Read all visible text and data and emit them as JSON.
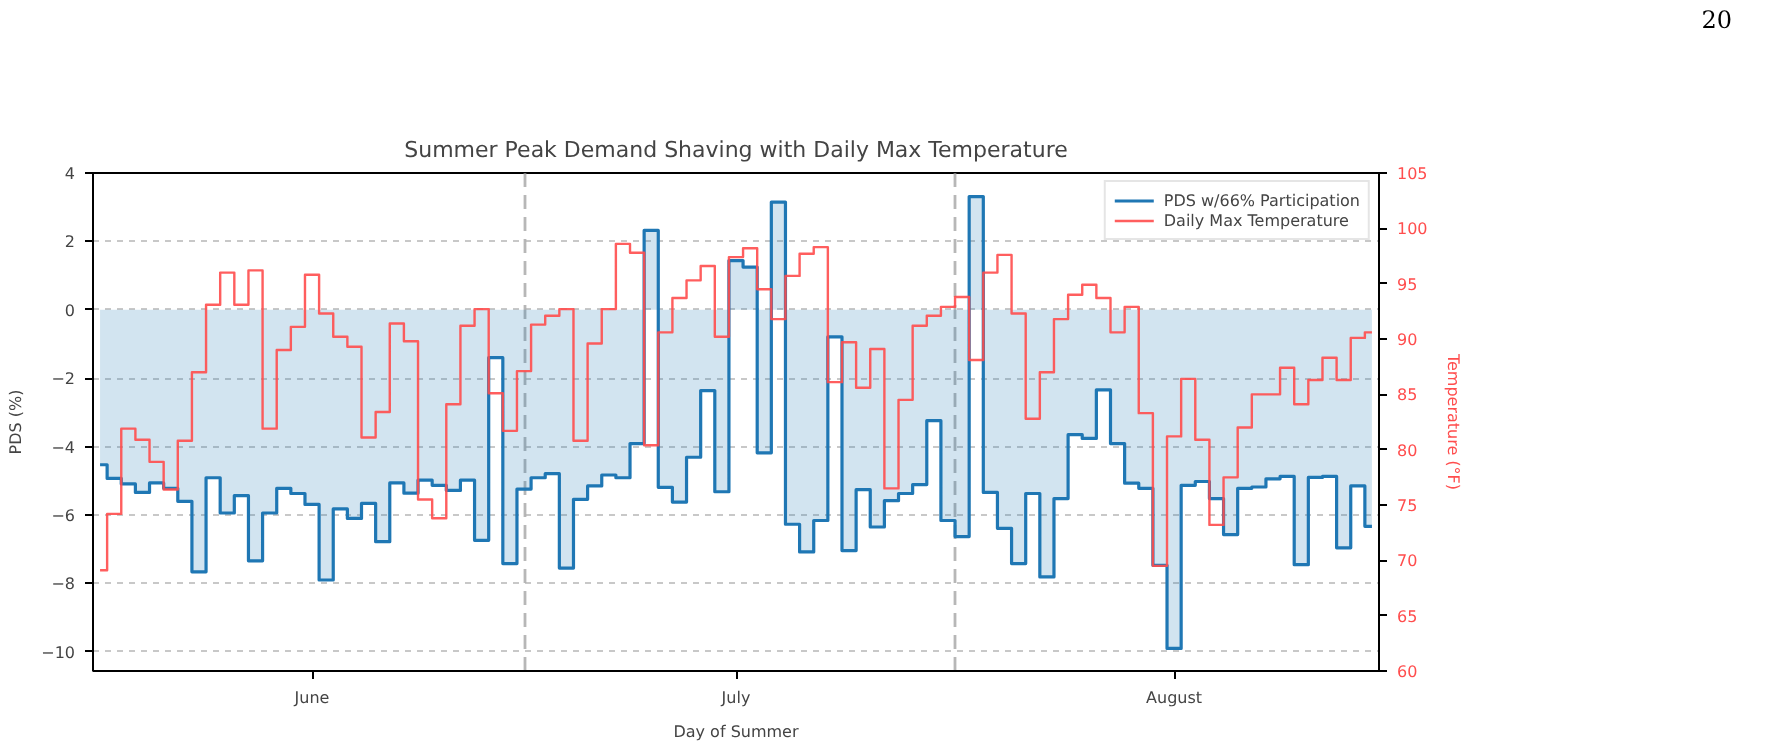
{
  "chart_data": {
    "type": "step",
    "title": "Summer Peak Demand Shaving with Daily Max Temperature",
    "xlabel": "Day of Summer",
    "ylabel": "PDS (%)",
    "y2label": "Temperature (°F)",
    "categories": [
      null,
      null,
      null,
      null,
      null,
      null,
      null,
      null,
      null,
      null,
      null,
      null,
      null,
      null,
      null,
      "June",
      null,
      null,
      null,
      null,
      null,
      null,
      null,
      null,
      null,
      null,
      null,
      null,
      null,
      null,
      null,
      null,
      null,
      null,
      null,
      null,
      null,
      null,
      null,
      null,
      null,
      null,
      null,
      null,
      null,
      "July",
      null,
      null,
      null,
      null,
      null,
      null,
      null,
      null,
      null,
      null,
      null,
      null,
      null,
      null,
      null,
      null,
      null,
      null,
      null,
      null,
      null,
      null,
      null,
      null,
      null,
      null,
      null,
      null,
      null,
      null,
      "August",
      null,
      null,
      null,
      null,
      null,
      null,
      null,
      null,
      null,
      null,
      null,
      null,
      null,
      null
    ],
    "ylim": [
      -10.56,
      4
    ],
    "yticks": [
      {
        "value": -10,
        "label": "−10"
      },
      {
        "value": -8,
        "label": "−8"
      },
      {
        "value": -6,
        "label": "−6"
      },
      {
        "value": -4,
        "label": "−4"
      },
      {
        "value": -2,
        "label": "−2"
      },
      0,
      2,
      4
    ],
    "y2lim": [
      60,
      105
    ],
    "y2ticks": [
      60,
      65,
      70,
      75,
      80,
      85,
      90,
      95,
      100,
      105
    ],
    "series": [
      {
        "name": "PDS w/66% Participation",
        "type": "area",
        "color": "#1f77b4",
        "values": [
          -4.53,
          -4.93,
          -5.09,
          -5.34,
          -5.06,
          -5.22,
          -5.6,
          -7.66,
          -4.91,
          -5.94,
          -5.43,
          -7.34,
          -5.94,
          -5.22,
          -5.37,
          -5.69,
          -7.9,
          -5.82,
          -6.1,
          -5.66,
          -6.78,
          -5.06,
          -5.36,
          -4.98,
          -5.13,
          -5.28,
          -4.98,
          -6.74,
          -1.4,
          -7.42,
          -5.24,
          -4.91,
          -4.79,
          -7.55,
          -5.54,
          -5.15,
          -4.83,
          -4.91,
          -3.91,
          2.32,
          -5.19,
          -5.62,
          -4.31,
          -2.36,
          -5.32,
          1.44,
          1.25,
          -4.18,
          3.15,
          -6.27,
          -7.08,
          -6.16,
          -0.79,
          -7.04,
          -5.26,
          -6.35,
          -5.58,
          -5.37,
          -5.11,
          -3.24,
          -6.16,
          -6.63,
          3.31,
          -5.34,
          -6.39,
          -7.42,
          -5.37,
          -7.81,
          -5.52,
          -3.65,
          -3.76,
          -2.34,
          -3.91,
          -5.07,
          -5.22,
          -7.47,
          -9.9,
          -5.13,
          -5.02,
          -5.52,
          -6.57,
          -5.22,
          -5.18,
          -4.94,
          -4.87,
          -7.45,
          -4.9,
          -4.87,
          -6.96,
          -5.15,
          -6.33
        ]
      },
      {
        "name": "Daily Max Temperature",
        "axis": "y2",
        "color": "#ff4d4d",
        "values": [
          69.1,
          74.2,
          81.9,
          80.9,
          78.9,
          76.4,
          80.8,
          87.0,
          93.1,
          96.0,
          93.1,
          96.2,
          81.9,
          89.0,
          91.1,
          95.8,
          92.3,
          90.2,
          89.3,
          81.1,
          83.4,
          91.4,
          89.8,
          75.5,
          73.8,
          84.1,
          91.2,
          92.7,
          85.1,
          81.7,
          87.1,
          91.3,
          92.1,
          92.7,
          80.8,
          89.6,
          92.7,
          98.6,
          97.8,
          80.4,
          90.6,
          93.7,
          95.3,
          96.6,
          90.2,
          97.4,
          98.2,
          94.5,
          91.8,
          95.7,
          97.7,
          98.3,
          86.1,
          89.7,
          85.6,
          89.1,
          76.5,
          84.5,
          91.2,
          92.1,
          92.9,
          93.8,
          88.1,
          96.0,
          97.6,
          92.3,
          82.8,
          87.0,
          91.8,
          94.0,
          94.9,
          93.7,
          90.6,
          92.9,
          83.3,
          69.5,
          81.2,
          86.4,
          80.9,
          73.2,
          77.5,
          82.0,
          85.0,
          85.0,
          87.4,
          84.1,
          86.3,
          88.3,
          86.3,
          90.1,
          90.6
        ]
      }
    ],
    "grid": true,
    "legend": "top right",
    "annotations": [
      "20"
    ]
  }
}
